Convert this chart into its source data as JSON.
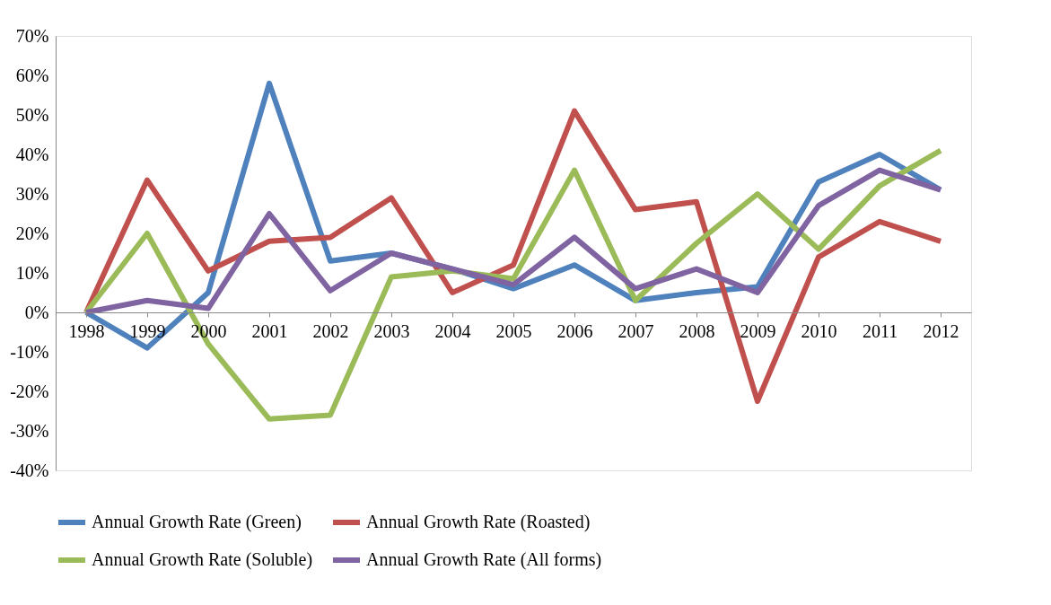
{
  "chart_data": {
    "type": "line",
    "categories": [
      "1998",
      "1999",
      "2000",
      "2001",
      "2002",
      "2003",
      "2004",
      "2005",
      "2006",
      "2007",
      "2008",
      "2009",
      "2010",
      "2011",
      "2012"
    ],
    "series": [
      {
        "name": "Annual Growth Rate (Green)",
        "color": "#4f81bd",
        "values": [
          0,
          -9,
          5,
          58,
          13,
          15,
          11,
          6,
          12,
          3,
          5,
          6.5,
          33,
          40,
          31
        ]
      },
      {
        "name": "Annual Growth Rate (Roasted)",
        "color": "#c0504d",
        "values": [
          0,
          33.5,
          10.5,
          18,
          19,
          29,
          5,
          12,
          51,
          26,
          28,
          -22.5,
          14,
          23,
          18
        ]
      },
      {
        "name": "Annual Growth Rate (Soluble)",
        "color": "#9bbb59",
        "values": [
          0,
          20,
          -8,
          -27,
          -26,
          9,
          10.5,
          8.5,
          36,
          3,
          17.5,
          30,
          16,
          32,
          41
        ]
      },
      {
        "name": "Annual Growth Rate (All forms)",
        "color": "#8064a2",
        "values": [
          0,
          3,
          1,
          25,
          5.5,
          15,
          11,
          7,
          19,
          6,
          11,
          5,
          27,
          36,
          31
        ]
      }
    ],
    "ylim": [
      -40,
      70
    ],
    "yticks": [
      {
        "value": -40,
        "label": "-40%"
      },
      {
        "value": -30,
        "label": "-30%"
      },
      {
        "value": -20,
        "label": "-20%"
      },
      {
        "value": -10,
        "label": "-10%"
      },
      {
        "value": 0,
        "label": "0%"
      },
      {
        "value": 10,
        "label": "10%"
      },
      {
        "value": 20,
        "label": "20%"
      },
      {
        "value": 30,
        "label": "30%"
      },
      {
        "value": 40,
        "label": "40%"
      },
      {
        "value": 50,
        "label": "50%"
      },
      {
        "value": 60,
        "label": "60%"
      },
      {
        "value": 70,
        "label": "70%"
      }
    ],
    "grid": false,
    "legend": "bottom",
    "marker": "none",
    "line_style": "solid"
  }
}
